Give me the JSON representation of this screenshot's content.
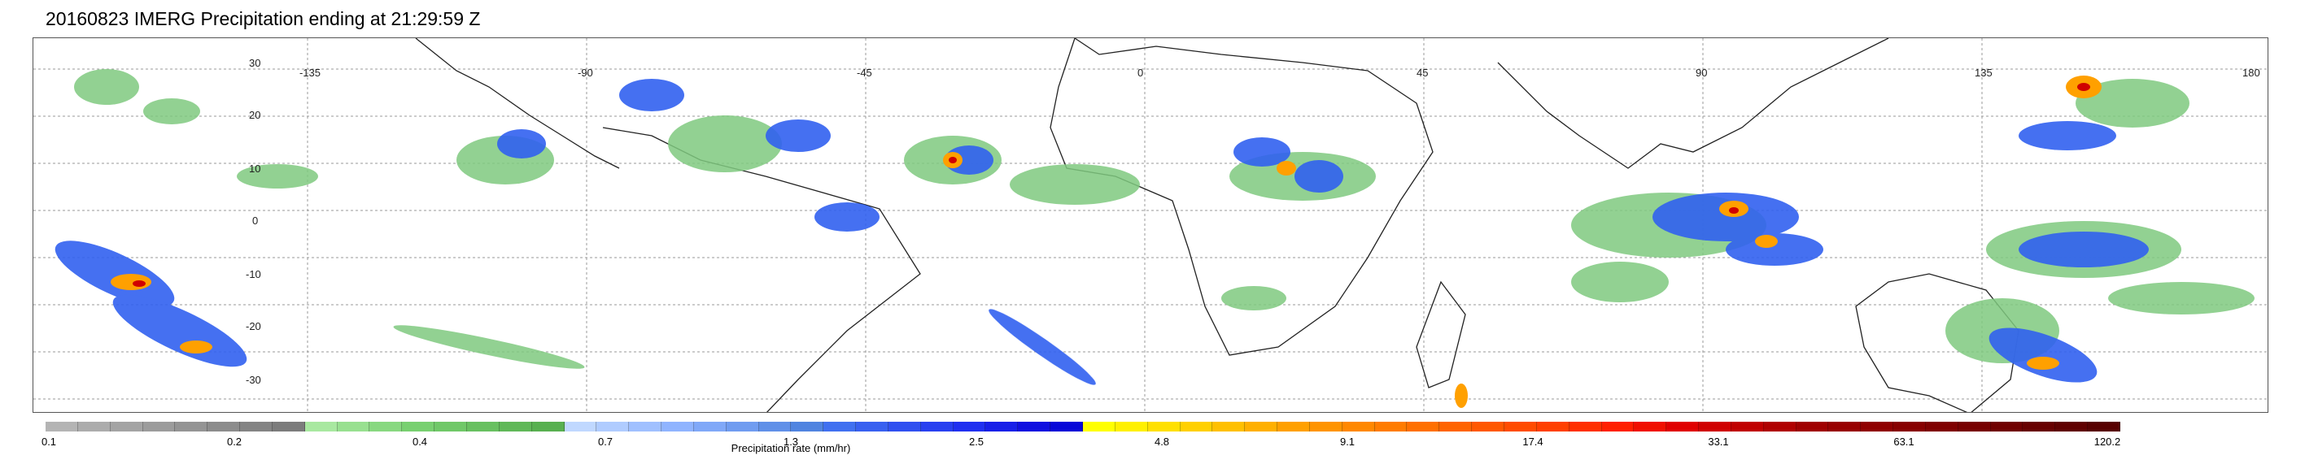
{
  "title": "20160823 IMERG Precipitation ending at 21:29:59 Z",
  "map": {
    "lon_labels": [
      "-135",
      "-90",
      "-45",
      "0",
      "45",
      "90",
      "135",
      "180"
    ],
    "lat_labels": [
      "30",
      "20",
      "10",
      "0",
      "-10",
      "-20",
      "-30"
    ]
  },
  "colorbar": {
    "label": "Precipitation rate (mm/hr)",
    "ticks": [
      "0.1",
      "0.2",
      "0.4",
      "0.7",
      "1.3",
      "2.5",
      "4.8",
      "9.1",
      "17.4",
      "33.1",
      "63.1",
      "120.2"
    ],
    "colors": [
      "#b4b4b4",
      "#acacac",
      "#a4a4a4",
      "#9c9c9c",
      "#949494",
      "#8c8c8c",
      "#848484",
      "#7c7c7c",
      "#a8e8a0",
      "#98e090",
      "#88d880",
      "#78d070",
      "#70c868",
      "#68c060",
      "#60b858",
      "#58b050",
      "#c0d8ff",
      "#b0ccff",
      "#a0c0ff",
      "#90b4ff",
      "#80a8f8",
      "#709cf0",
      "#6090e8",
      "#5084e0",
      "#4070f0",
      "#3860f0",
      "#3050f0",
      "#2840f0",
      "#2030f0",
      "#1820e8",
      "#1010e0",
      "#0808d8",
      "#ffff00",
      "#fff000",
      "#ffe000",
      "#ffd000",
      "#ffc000",
      "#ffb000",
      "#ffa000",
      "#ff9400",
      "#ff8800",
      "#ff7c00",
      "#ff7000",
      "#ff6400",
      "#ff5800",
      "#ff4c00",
      "#ff4000",
      "#ff3000",
      "#ff2000",
      "#f01000",
      "#e00000",
      "#d00000",
      "#c00000",
      "#b00000",
      "#a00000",
      "#980000",
      "#900000",
      "#880000",
      "#800000",
      "#780000",
      "#700000",
      "#680000",
      "#600000",
      "#580000"
    ]
  },
  "legend_colors": {
    "light": "#7fc97f",
    "moderate": "#3060f0",
    "heavy": "#ffa000",
    "intense": "#d00000"
  }
}
